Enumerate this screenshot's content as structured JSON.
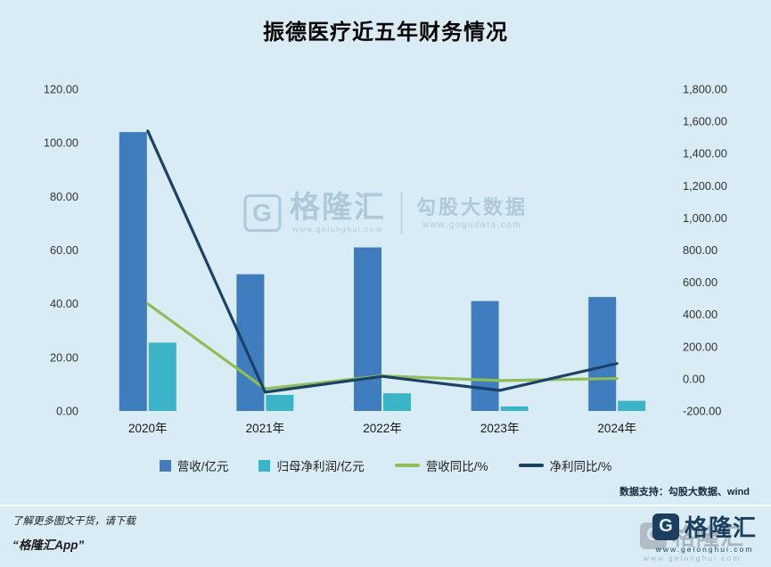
{
  "title": "振德医疗近五年财务情况",
  "watermark": {
    "g_letter": "G",
    "brand": "格隆汇",
    "brand_url": "www.gelonghui.com",
    "product": "勾股大数据",
    "product_url": "www.gogudata.com"
  },
  "chart_data": {
    "type": "combo (grouped bar + line, dual y-axis)",
    "title": "振德医疗近五年财务情况",
    "categories": [
      "2020年",
      "2021年",
      "2022年",
      "2023年",
      "2024年"
    ],
    "bar_series": [
      {
        "name": "营收/亿元",
        "axis": "left",
        "color": "#3f7dbe",
        "values": [
          104,
          51,
          61,
          41,
          42.5
        ]
      },
      {
        "name": "归母净利润/亿元",
        "axis": "left",
        "color": "#3cb4c7",
        "values": [
          25.5,
          6,
          6.6,
          1.7,
          3.8
        ]
      }
    ],
    "line_series": [
      {
        "name": "营收同比/%",
        "axis": "right",
        "color": "#8fbe56",
        "values": [
          466,
          -62,
          18,
          -11,
          2
        ]
      },
      {
        "name": "净利同比/%",
        "axis": "right",
        "color": "#1c4166",
        "values": [
          1540,
          -83,
          15,
          -72,
          95
        ]
      }
    ],
    "left_axis": {
      "min": 0,
      "max": 120,
      "step": 20,
      "labels": [
        "120.00",
        "100.00",
        "80.00",
        "60.00",
        "40.00",
        "20.00",
        "0.00"
      ]
    },
    "right_axis": {
      "min": -200,
      "max": 1800,
      "step": 200,
      "labels": [
        "1,800.00",
        "1,600.00",
        "1,400.00",
        "1,200.00",
        "1,000.00",
        "800.00",
        "600.00",
        "400.00",
        "200.00",
        "0.00",
        "-200.00"
      ]
    },
    "grid": false,
    "legend_position": "bottom"
  },
  "source_note": "数据支持：勾股大数据、wind",
  "footer": {
    "promo_line1": "了解更多图文干货，请下载",
    "promo_line2": "“格隆汇App”",
    "logo": {
      "g_letter": "G",
      "brand": "格隆汇",
      "url": "www.gelonghui.com"
    }
  }
}
